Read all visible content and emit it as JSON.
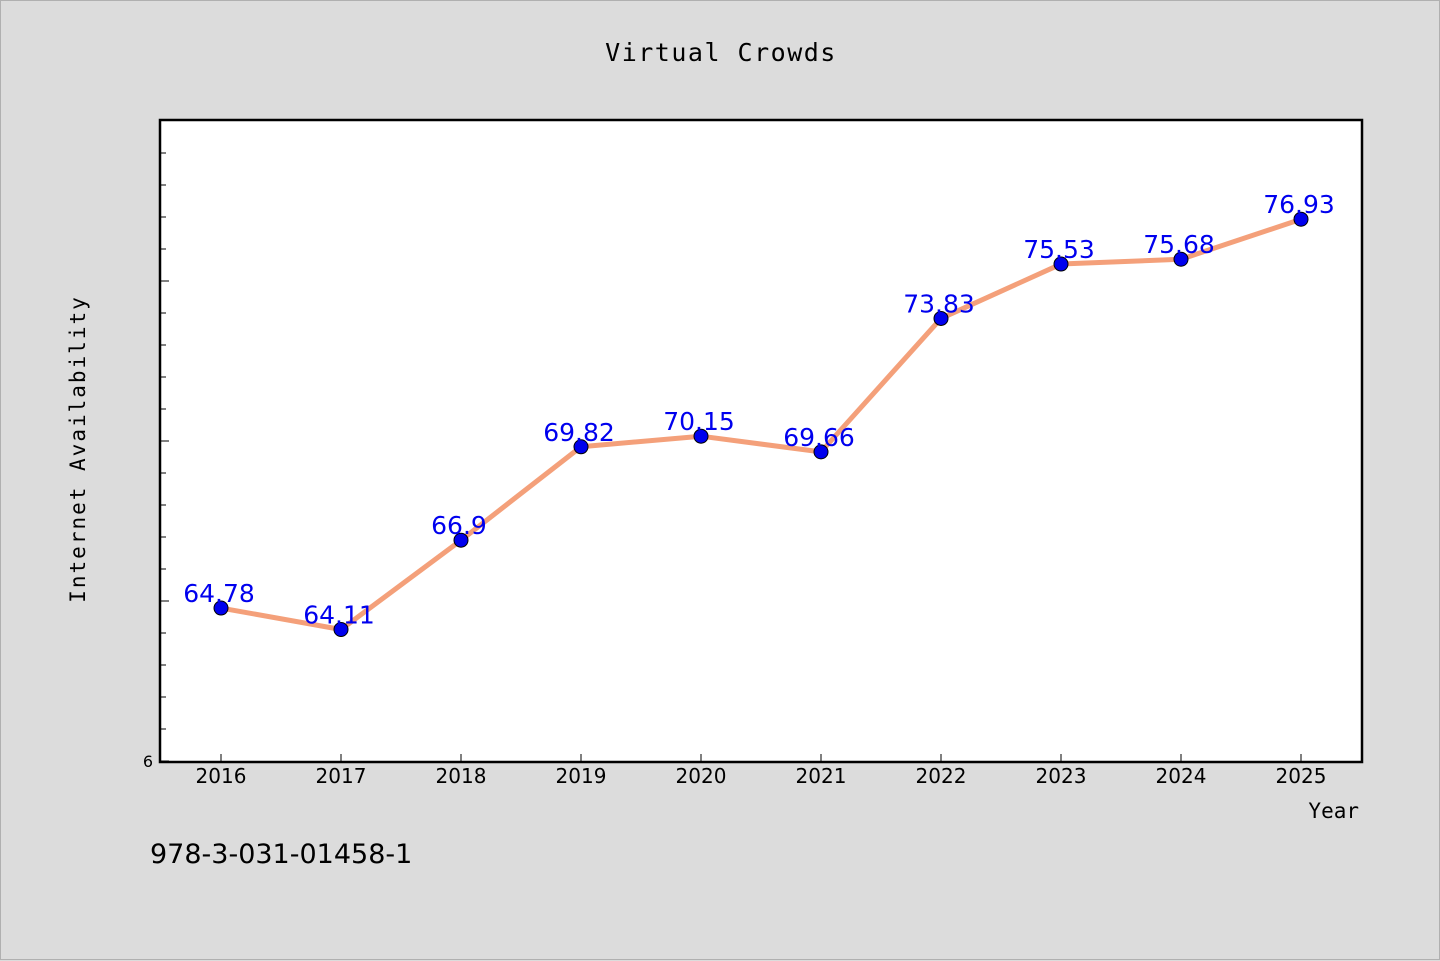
{
  "chart_data": {
    "type": "line",
    "title": "Virtual Crowds",
    "xlabel": "Year",
    "ylabel": "Internet Availability",
    "categories": [
      "2016",
      "2017",
      "2018",
      "2019",
      "2020",
      "2021",
      "2022",
      "2023",
      "2024",
      "2025"
    ],
    "series": [
      {
        "values": [
          64.78,
          64.11,
          66.9,
          69.82,
          70.15,
          69.66,
          73.83,
          75.53,
          75.68,
          76.93
        ],
        "labels": [
          "64.78",
          "64.11",
          "66.9",
          "69.82",
          "70.15",
          "69.66",
          "73.83",
          "75.53",
          "75.68",
          "76.93"
        ]
      }
    ],
    "ylim": [
      60,
      80
    ],
    "ytick_label": "6",
    "line_color": "#f4a07a",
    "marker_color": "#0000ee",
    "label_color": "#0000ee",
    "grid": false,
    "legend": "none"
  },
  "footer": {
    "isbn": "978-3-031-01458-1"
  }
}
